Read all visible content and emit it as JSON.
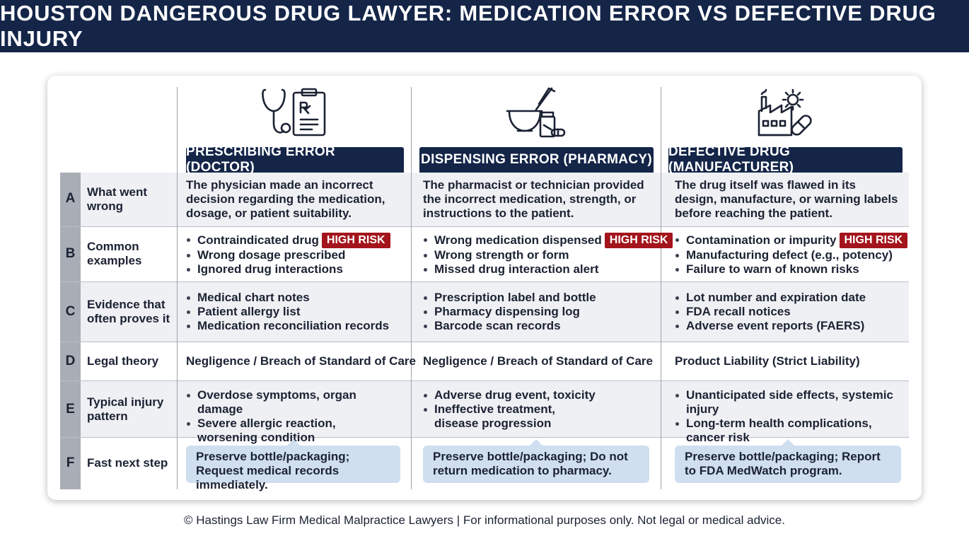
{
  "header": {
    "title": "HOUSTON DANGEROUS DRUG LAWYER: MEDICATION ERROR VS DEFECTIVE DRUG INJURY"
  },
  "columns": [
    {
      "title": "PRESCRIBING ERROR (DOCTOR)",
      "icon": "stethoscope-prescription-icon"
    },
    {
      "title": "DISPENSING ERROR (PHARMACY)",
      "icon": "mortar-pestle-pill-bottle-icon"
    },
    {
      "title": "DEFECTIVE DRUG (MANUFACTURER)",
      "icon": "factory-gear-capsule-icon"
    }
  ],
  "rows": [
    {
      "letter": "A",
      "label": "What went wrong",
      "cells": [
        "The physician made an incorrect decision regarding the medication, dosage, or patient suitability.",
        "The pharmacist or technician provided the incorrect medication, strength, or instructions to the patient.",
        "The drug itself was flawed in its design, manufacture, or warning labels before reaching the patient."
      ]
    },
    {
      "letter": "B",
      "label": "Common examples",
      "cells": [
        [
          "Contraindicated drug",
          "Wrong dosage prescribed",
          "Ignored drug interactions"
        ],
        [
          "Wrong medication dispensed",
          "Wrong strength or form",
          "Missed drug interaction alert"
        ],
        [
          "Contamination or impurity",
          "Manufacturing defect (e.g., potency)",
          "Failure to warn of known risks"
        ]
      ],
      "badge": "HIGH RISK"
    },
    {
      "letter": "C",
      "label": "Evidence that often proves it",
      "cells": [
        [
          "Medical chart notes",
          "Patient allergy list",
          "Medication reconciliation records"
        ],
        [
          "Prescription label and bottle",
          "Pharmacy dispensing log",
          "Barcode scan records"
        ],
        [
          "Lot number and expiration date",
          "FDA recall notices",
          "Adverse event reports (FAERS)"
        ]
      ]
    },
    {
      "letter": "D",
      "label": "Legal theory",
      "cells": [
        "Negligence / Breach of Standard of Care",
        "Negligence / Breach of Standard of Care",
        "Product Liability (Strict Liability)"
      ]
    },
    {
      "letter": "E",
      "label": "Typical injury pattern",
      "cells": [
        [
          "Overdose symptoms, organ damage",
          "Severe allergic reaction, worsening condition"
        ],
        [
          "Adverse drug event, toxicity",
          "Ineffective treatment, disease progression"
        ],
        [
          "Unanticipated side effects, systemic injury",
          "Long-term health complications, cancer risk"
        ]
      ]
    },
    {
      "letter": "F",
      "label": "Fast next step",
      "cells": [
        "Preserve bottle/packaging; Request medical records immediately.",
        "Preserve bottle/packaging; Do not return medication to pharmacy.",
        "Preserve bottle/packaging; Report to FDA MedWatch program."
      ]
    }
  ],
  "footer": "© Hastings Law Firm Medical Malpractice Lawyers | For informational purposes only. Not legal or medical advice.",
  "colors": {
    "navy": "#142548",
    "risk": "#a3141c",
    "callout": "#cfdff0",
    "shade": "#eef0f3"
  }
}
